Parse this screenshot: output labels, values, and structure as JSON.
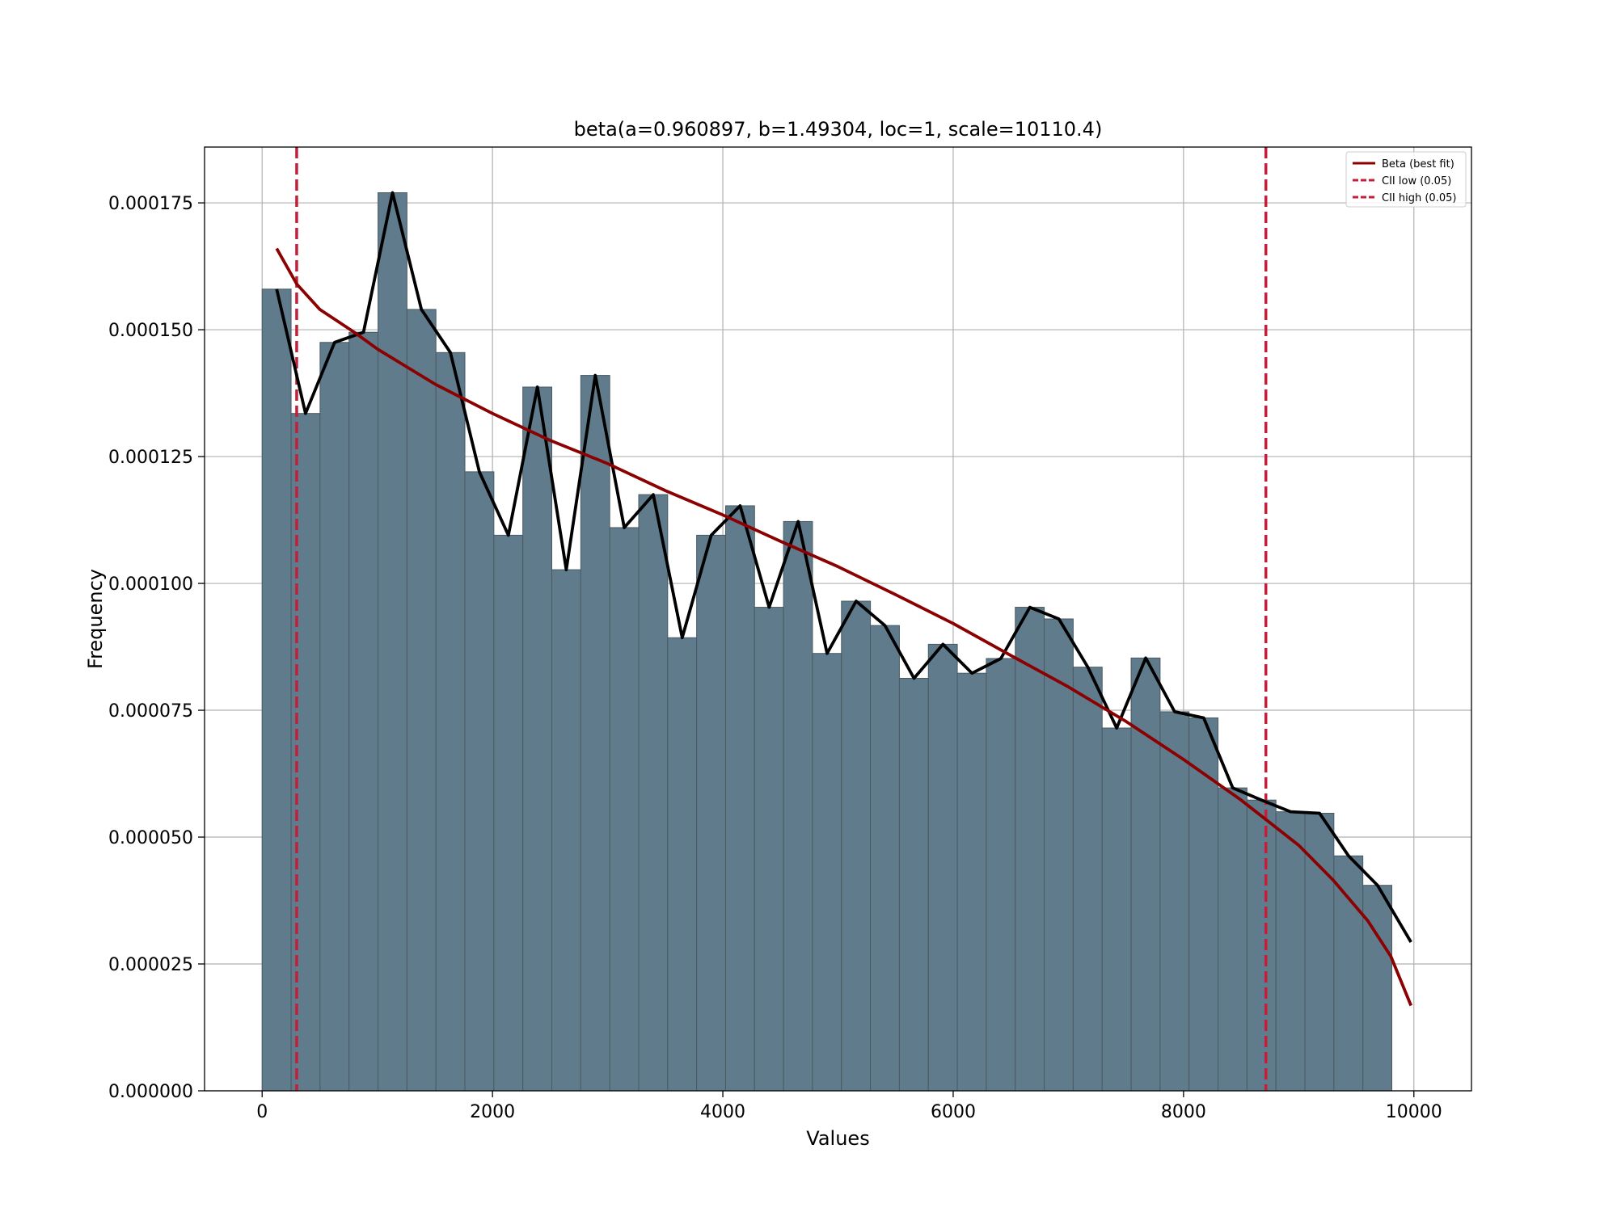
{
  "chart_data": {
    "type": "bar",
    "title": "beta(a=0.960897, b=1.49304, loc=1, scale=10110.4)",
    "xlabel": "Values",
    "ylabel": "Frequency",
    "xlim": [
      -500,
      10500
    ],
    "ylim": [
      0,
      0.000186
    ],
    "x_ticks": [
      0,
      2000,
      4000,
      6000,
      8000,
      10000
    ],
    "x_tick_labels": [
      "0",
      "2000",
      "4000",
      "6000",
      "8000",
      "10000"
    ],
    "y_ticks": [
      0,
      2.5e-05,
      5e-05,
      7.5e-05,
      0.0001,
      0.000125,
      0.00015,
      0.000175
    ],
    "y_tick_labels": [
      "0.000000",
      "0.000025",
      "0.000050",
      "0.000075",
      "0.000100",
      "0.000125",
      "0.000150",
      "0.000175"
    ],
    "grid": true,
    "legend_position": "top-right",
    "colors": {
      "bars": "#607b8b",
      "bar_edge": "#4a5a63",
      "empirical_line": "#000000",
      "fit_line": "#8b0000",
      "ci_lines": "#c41e3a",
      "grid": "#b0b0b0"
    },
    "histogram": {
      "bin_start": 0,
      "bin_width": 251.5,
      "values": [
        0.000158,
        0.0001335,
        0.0001475,
        0.0001495,
        0.000177,
        0.000154,
        0.0001455,
        0.000122,
        0.0001095,
        0.0001387,
        0.0001027,
        0.000141,
        0.000111,
        0.0001175,
        8.93e-05,
        0.0001095,
        0.0001153,
        9.53e-05,
        0.0001122,
        8.62e-05,
        9.65e-05,
        9.17e-05,
        8.13e-05,
        8.8e-05,
        8.23e-05,
        8.52e-05,
        9.53e-05,
        9.3e-05,
        8.35e-05,
        7.15e-05,
        8.53e-05,
        7.47e-05,
        7.35e-05,
        5.97e-05,
        5.73e-05,
        5.5e-05,
        5.47e-05,
        4.63e-05,
        4.05e-05
      ]
    },
    "series": [
      {
        "name": "Beta (best fit)",
        "type": "line",
        "style": "solid",
        "x": [
          126,
          300,
          500,
          800,
          1000,
          1500,
          2000,
          2500,
          3000,
          3500,
          4000,
          4500,
          5000,
          5500,
          6000,
          6500,
          7000,
          7500,
          8000,
          8500,
          9000,
          9300,
          9600,
          9800,
          9975
        ],
        "values": [
          0.000166,
          0.000159,
          0.000154,
          0.0001495,
          0.0001462,
          0.0001393,
          0.0001335,
          0.0001282,
          0.0001236,
          0.0001183,
          0.0001135,
          0.0001083,
          0.0001033,
          9.78e-05,
          9.21e-05,
          8.58e-05,
          7.96e-05,
          7.28e-05,
          6.53e-05,
          5.73e-05,
          4.84e-05,
          4.15e-05,
          3.35e-05,
          2.65e-05,
          1.68e-05
        ]
      },
      {
        "type": "line",
        "style": "solid",
        "x": [
          126,
          377,
          629,
          880,
          1132,
          1383,
          1635,
          1886,
          2138,
          2390,
          2641,
          2893,
          3144,
          3396,
          3647,
          3899,
          4150,
          4402,
          4654,
          4905,
          5157,
          5408,
          5660,
          5911,
          6163,
          6414,
          6666,
          6917,
          7169,
          7420,
          7672,
          7923,
          8175,
          8427,
          8678,
          8930,
          9181,
          9433,
          9684,
          9975
        ],
        "values": [
          0.000158,
          0.0001335,
          0.0001475,
          0.0001495,
          0.000177,
          0.000154,
          0.0001455,
          0.000122,
          0.0001095,
          0.0001387,
          0.0001027,
          0.000141,
          0.000111,
          0.0001175,
          8.93e-05,
          0.0001095,
          0.0001153,
          9.53e-05,
          0.0001122,
          8.62e-05,
          9.65e-05,
          9.17e-05,
          8.13e-05,
          8.8e-05,
          8.23e-05,
          8.52e-05,
          9.53e-05,
          9.3e-05,
          8.35e-05,
          7.15e-05,
          8.53e-05,
          7.47e-05,
          7.35e-05,
          5.97e-05,
          5.73e-05,
          5.5e-05,
          5.47e-05,
          4.63e-05,
          4.05e-05,
          2.93e-05
        ]
      },
      {
        "name": "CII low (0.05)",
        "type": "vline",
        "style": "dashed",
        "x": 300
      },
      {
        "name": "CII high (0.05)",
        "type": "vline",
        "style": "dashed",
        "x": 8715
      }
    ]
  }
}
